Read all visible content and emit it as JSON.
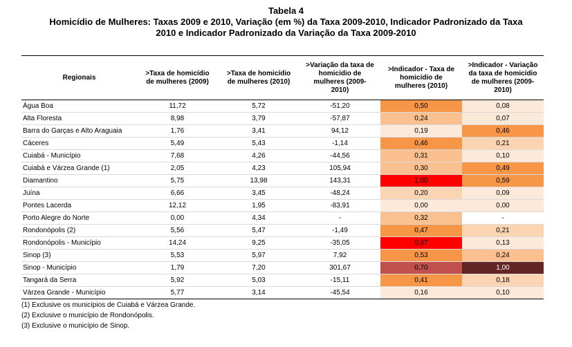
{
  "title": {
    "line1": "Tabela 4",
    "line2": "Homicídio de Mulheres: Taxas 2009 e 2010, Variação (em %) da Taxa 2009-2010, Indicador Padronizado da Taxa",
    "line3": "2010 e Indicador Padronizado da Variação da Taxa 2009-2010"
  },
  "headers": [
    [
      "Regionais"
    ],
    [
      ">Taxa de homicídio",
      "de mulheres (2009)"
    ],
    [
      ">Taxa de homicídio",
      "de mulheres (2010)"
    ],
    [
      ">Variação da taxa de",
      "homicídio de",
      "mulheres (2009-",
      "2010)"
    ],
    [
      ">Indicador - Taxa de",
      "homicídio de",
      "mulheres (2010)"
    ],
    [
      ">Indicador - Variação",
      "da taxa de homicídio",
      "de mulheres (2009-",
      "2010)"
    ]
  ],
  "rows": [
    {
      "name": "Água Boa",
      "t2009": "11,72",
      "t2010": "5,72",
      "var": "-51,20",
      "ind_taxa": "0,50",
      "ind_var": "0,08",
      "c1": "#f79646",
      "c2": "#fde9d9"
    },
    {
      "name": "Alta Floresta",
      "t2009": "8,98",
      "t2010": "3,79",
      "var": "-57,87",
      "ind_taxa": "0,24",
      "ind_var": "0,07",
      "c1": "#fac090",
      "c2": "#fde9d9"
    },
    {
      "name": "Barra do Garças e Alto Araguaia",
      "t2009": "1,76",
      "t2010": "3,41",
      "var": "94,12",
      "ind_taxa": "0,19",
      "ind_var": "0,46",
      "c1": "#fde9d9",
      "c2": "#f79646"
    },
    {
      "name": "Cáceres",
      "t2009": "5,49",
      "t2010": "5,43",
      "var": "-1,14",
      "ind_taxa": "0,46",
      "ind_var": "0,21",
      "c1": "#f79646",
      "c2": "#fbd4b4"
    },
    {
      "name": "Cuiabá - Município",
      "t2009": "7,68",
      "t2010": "4,26",
      "var": "-44,56",
      "ind_taxa": "0,31",
      "ind_var": "0,10",
      "c1": "#fac090",
      "c2": "#fde9d9"
    },
    {
      "name": "Cuiabá e Várzea Grande (1)",
      "t2009": "2,05",
      "t2010": "4,23",
      "var": "105,94",
      "ind_taxa": "0,30",
      "ind_var": "0,49",
      "c1": "#fac090",
      "c2": "#f79646"
    },
    {
      "name": "Diamantino",
      "t2009": "5,75",
      "t2010": "13,98",
      "var": "143,31",
      "ind_taxa": "1,00",
      "ind_var": "0,59",
      "c1": "#ff0000",
      "c2": "#f79646"
    },
    {
      "name": "Juína",
      "t2009": "6,66",
      "t2010": "3,45",
      "var": "-48,24",
      "ind_taxa": "0,20",
      "ind_var": "0,09",
      "c1": "#fbd4b4",
      "c2": "#fde9d9"
    },
    {
      "name": "Pontes Lacerda",
      "t2009": "12,12",
      "t2010": "1,95",
      "var": "-83,91",
      "ind_taxa": "0,00",
      "ind_var": "0,00",
      "c1": "#fde9d9",
      "c2": "#fde9d9"
    },
    {
      "name": "Porto Alegre do Norte",
      "t2009": "0,00",
      "t2010": "4,34",
      "var": "-",
      "ind_taxa": "0,32",
      "ind_var": "-",
      "c1": "#fac090",
      "c2": "#ffffff"
    },
    {
      "name": "Rondonópolis (2)",
      "t2009": "5,56",
      "t2010": "5,47",
      "var": "-1,49",
      "ind_taxa": "0,47",
      "ind_var": "0,21",
      "c1": "#f79646",
      "c2": "#fbd4b4"
    },
    {
      "name": "Rondonópolis - Município",
      "t2009": "14,24",
      "t2010": "9,25",
      "var": "-35,05",
      "ind_taxa": "0,97",
      "ind_var": "0,13",
      "c1": "#ff0000",
      "c2": "#fde9d9"
    },
    {
      "name": "Sinop (3)",
      "t2009": "5,53",
      "t2010": "5,97",
      "var": "7,92",
      "ind_taxa": "0,53",
      "ind_var": "0,24",
      "c1": "#f79646",
      "c2": "#fac090"
    },
    {
      "name": "Sinop - Município",
      "t2009": "1,79",
      "t2010": "7,20",
      "var": "301,67",
      "ind_taxa": "0,70",
      "ind_var": "1,00",
      "c1": "#c0504d",
      "c2": "#632523"
    },
    {
      "name": "Tangará da Serra",
      "t2009": "5,92",
      "t2010": "5,03",
      "var": "-15,11",
      "ind_taxa": "0,41",
      "ind_var": "0,18",
      "c1": "#f79646",
      "c2": "#fbd4b4"
    },
    {
      "name": "Várzea Grande - Município",
      "t2009": "5,77",
      "t2010": "3,14",
      "var": "-45,54",
      "ind_taxa": "0,16",
      "ind_var": "0,10",
      "c1": "#fde9d9",
      "c2": "#fde9d9"
    }
  ],
  "notes": [
    "(1) Exclusive os municípios de Cuiabá e Várzea Grande.",
    "(2) Exclusive o município de Rondonópolis.",
    "(3) Exclusive o município de Sinop."
  ]
}
